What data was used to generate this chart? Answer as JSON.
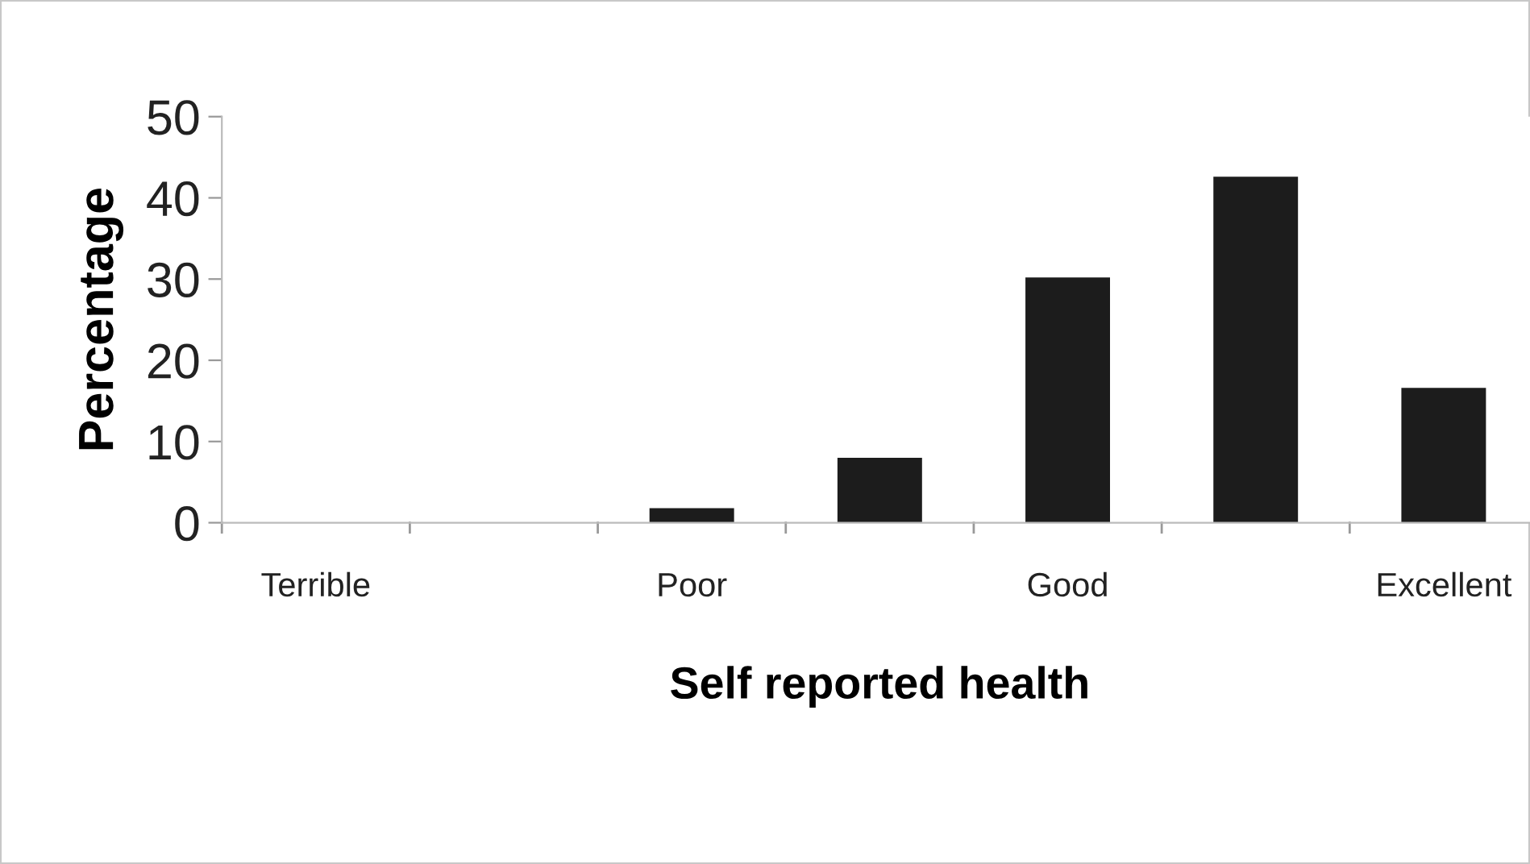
{
  "chart_data": {
    "type": "bar",
    "xlabel": "Self reported health",
    "ylabel": "Percentage",
    "categories": [
      "Terrible",
      null,
      "Poor",
      null,
      "Good",
      null,
      "Excellent"
    ],
    "values": [
      0,
      0,
      1.8,
      8,
      30.2,
      42.6,
      16.6
    ],
    "color": "#1c1c1c",
    "ylim": [
      0,
      50
    ],
    "yticks": [
      0,
      10,
      20,
      30,
      40,
      50
    ],
    "grid": false
  }
}
